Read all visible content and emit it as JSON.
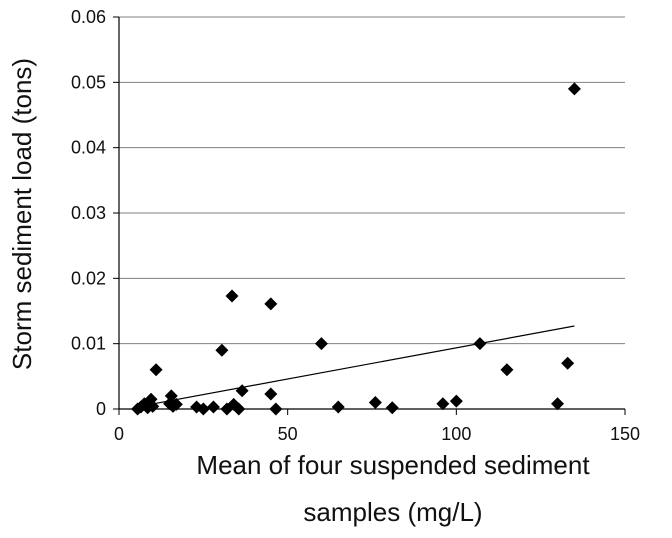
{
  "chart_data": {
    "type": "scatter",
    "xlabel_lines": [
      "Mean of four suspended sediment",
      "samples (mg/L)"
    ],
    "ylabel": "Storm sediment load (tons)",
    "xlim": [
      0,
      150
    ],
    "ylim": [
      0,
      0.06
    ],
    "x_ticks": [
      "0",
      "50",
      "100",
      "150"
    ],
    "y_ticks": [
      "0",
      "0.01",
      "0.02",
      "0.03",
      "0.04",
      "0.05",
      "0.06"
    ],
    "grid": "horizontal",
    "marker": "diamond",
    "trendline": {
      "x": [
        5,
        135
      ],
      "y": [
        0.0003,
        0.0127
      ]
    },
    "points": [
      {
        "x": 5.5,
        "y": 0.0
      },
      {
        "x": 6.5,
        "y": 0.0003
      },
      {
        "x": 7.5,
        "y": 0.0008
      },
      {
        "x": 8.5,
        "y": 0.0002
      },
      {
        "x": 9.0,
        "y": 0.0007
      },
      {
        "x": 9.5,
        "y": 0.0015
      },
      {
        "x": 10.0,
        "y": 0.0004
      },
      {
        "x": 11.0,
        "y": 0.006
      },
      {
        "x": 15.0,
        "y": 0.0008
      },
      {
        "x": 15.5,
        "y": 0.002
      },
      {
        "x": 16.0,
        "y": 0.0004
      },
      {
        "x": 17.0,
        "y": 0.0007
      },
      {
        "x": 23.0,
        "y": 0.0003
      },
      {
        "x": 25.0,
        "y": 0.0
      },
      {
        "x": 28.0,
        "y": 0.0003
      },
      {
        "x": 30.5,
        "y": 0.009
      },
      {
        "x": 32.0,
        "y": 0.0
      },
      {
        "x": 33.5,
        "y": 0.0173
      },
      {
        "x": 34.0,
        "y": 0.0007
      },
      {
        "x": 35.5,
        "y": 0.0
      },
      {
        "x": 36.5,
        "y": 0.0028
      },
      {
        "x": 45.0,
        "y": 0.0161
      },
      {
        "x": 45.0,
        "y": 0.0023
      },
      {
        "x": 46.5,
        "y": 0.0
      },
      {
        "x": 60.0,
        "y": 0.01
      },
      {
        "x": 65.0,
        "y": 0.0003
      },
      {
        "x": 76.0,
        "y": 0.001
      },
      {
        "x": 81.0,
        "y": 0.0002
      },
      {
        "x": 96.0,
        "y": 0.0008
      },
      {
        "x": 100.0,
        "y": 0.0012
      },
      {
        "x": 107.0,
        "y": 0.01
      },
      {
        "x": 115.0,
        "y": 0.006
      },
      {
        "x": 130.0,
        "y": 0.0008
      },
      {
        "x": 133.0,
        "y": 0.007
      },
      {
        "x": 135.0,
        "y": 0.049
      }
    ]
  }
}
